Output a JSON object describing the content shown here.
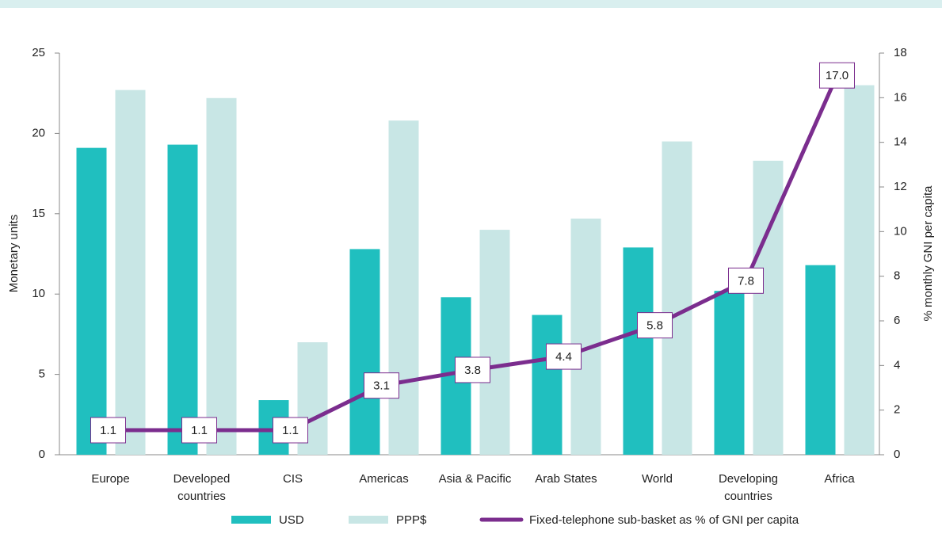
{
  "chart_data": {
    "type": "bar",
    "categories": [
      "Europe",
      "Developed countries",
      "CIS",
      "Americas",
      "Asia & Pacific",
      "Arab States",
      "World",
      "Developing countries",
      "Africa"
    ],
    "series": [
      {
        "name": "USD",
        "color": "#20bfbf",
        "values": [
          19.1,
          19.3,
          3.4,
          12.8,
          9.8,
          8.7,
          12.9,
          10.2,
          11.8
        ]
      },
      {
        "name": "PPP$",
        "color": "#c8e6e5",
        "values": [
          22.7,
          22.2,
          7.0,
          20.8,
          14.0,
          14.7,
          19.5,
          18.3,
          23.0
        ]
      },
      {
        "name": "Fixed-telephone sub-basket as % of GNI per capita",
        "color": "#7b2d8e",
        "type": "line",
        "axis": "y2",
        "values": [
          1.1,
          1.1,
          1.1,
          3.1,
          3.8,
          4.4,
          5.8,
          7.8,
          17.0
        ],
        "value_labels": [
          "1.1",
          "1.1",
          "1.1",
          "3.1",
          "3.8",
          "4.4",
          "5.8",
          "7.8",
          "17.0"
        ]
      }
    ],
    "ylabel": "Monetary units",
    "y2label": "% monthly GNI per capita",
    "ylim": [
      0,
      25
    ],
    "yticks": [
      0,
      5,
      10,
      15,
      20,
      25
    ],
    "y2lim": [
      0,
      18
    ],
    "y2ticks": [
      0,
      2,
      4,
      6,
      8,
      10,
      12,
      14,
      16,
      18
    ],
    "legend": "bottom"
  }
}
